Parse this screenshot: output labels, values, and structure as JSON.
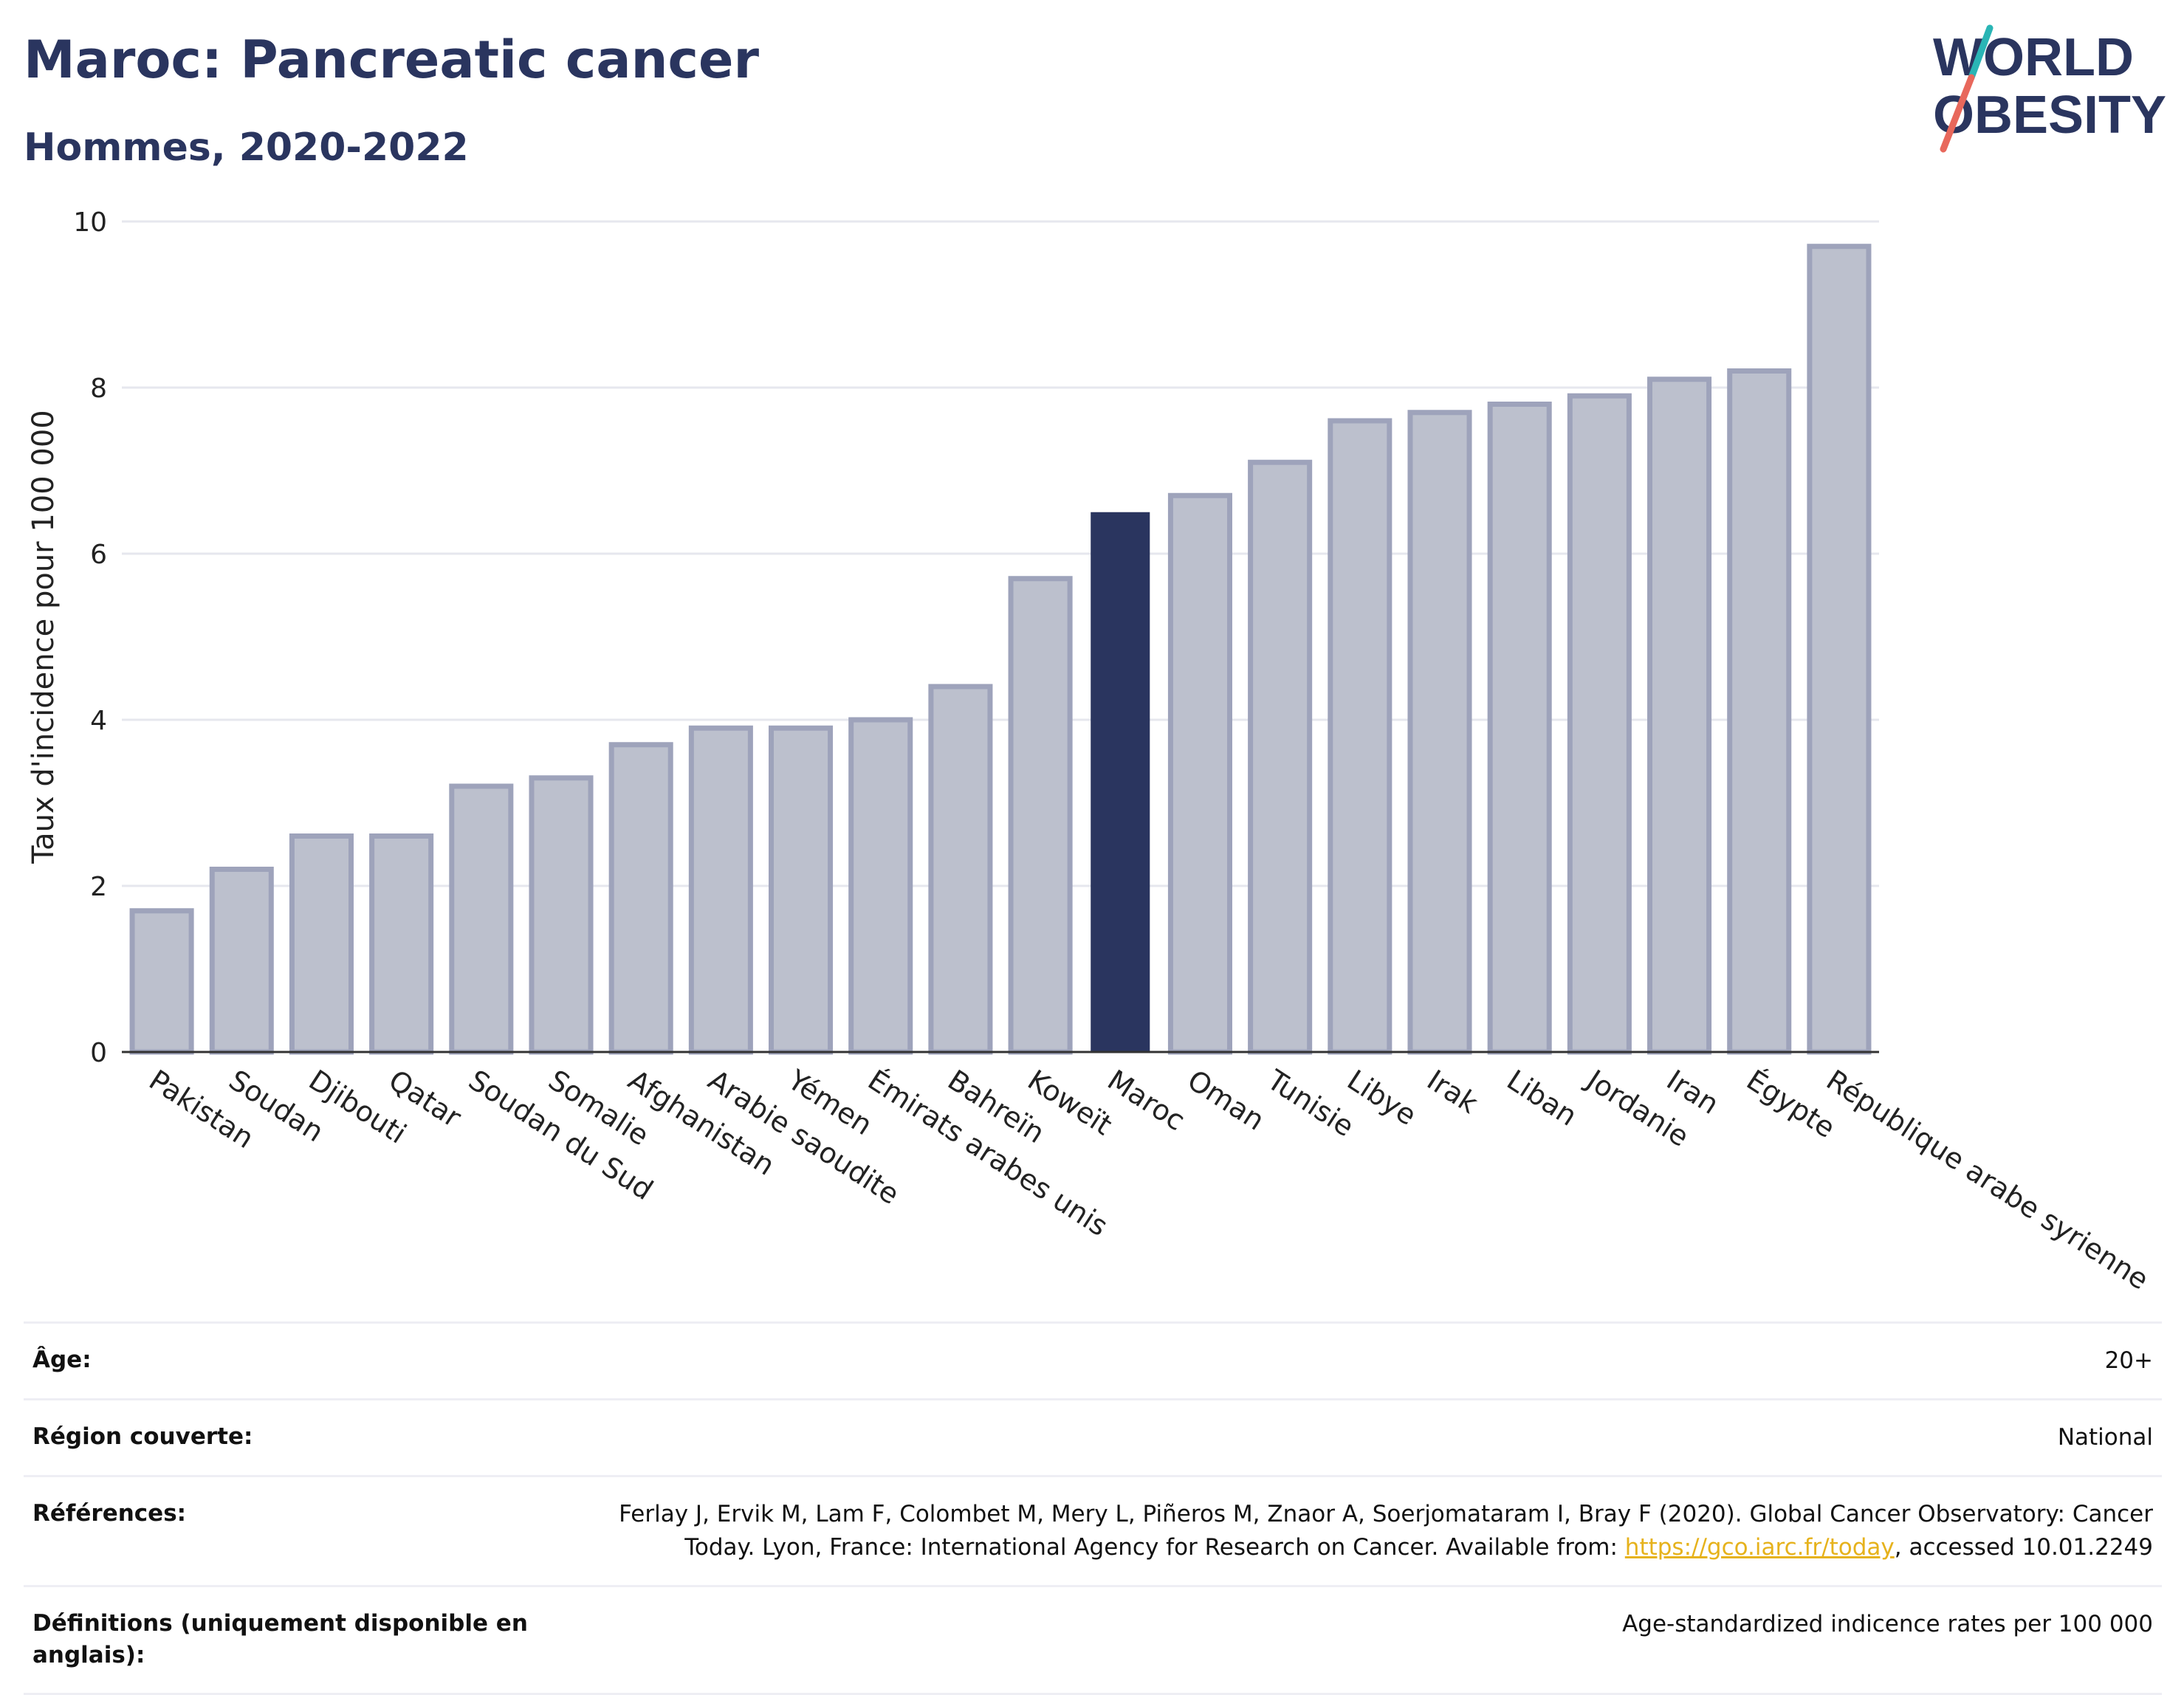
{
  "header": {
    "title": "Maroc: Pancreatic cancer",
    "subtitle": "Hommes, 2020-2022"
  },
  "logo": {
    "line1": "WORLD",
    "line2": "OBESITY"
  },
  "colors": {
    "highlight": "#2a355f",
    "bar_fill": "#bcc0cd",
    "bar_stroke": "#9ea3bb",
    "accent_teal": "#2ab5b5",
    "accent_red": "#e8685c",
    "link": "#e6b21c"
  },
  "chart_data": {
    "type": "bar",
    "title": "Maroc: Pancreatic cancer",
    "subtitle": "Hommes, 2020-2022",
    "ylabel": "Taux d'incidence pour 100 000",
    "xlabel": "",
    "ylim": [
      0,
      10
    ],
    "yticks": [
      0,
      2,
      4,
      6,
      8,
      10
    ],
    "grid": true,
    "highlight": "Maroc",
    "categories": [
      "Pakistan",
      "Soudan",
      "Djibouti",
      "Qatar",
      "Soudan du Sud",
      "Somalie",
      "Afghanistan",
      "Arabie saoudite",
      "Yémen",
      "Émirats arabes unis",
      "Bahreïn",
      "Koweït",
      "Maroc",
      "Oman",
      "Tunisie",
      "Libye",
      "Irak",
      "Liban",
      "Jordanie",
      "Iran",
      "Égypte",
      "République arabe syrienne"
    ],
    "values": [
      1.7,
      2.2,
      2.6,
      2.6,
      3.2,
      3.3,
      3.7,
      3.9,
      3.9,
      4.0,
      4.4,
      5.7,
      6.5,
      6.7,
      7.1,
      7.6,
      7.7,
      7.8,
      7.9,
      8.1,
      8.2,
      9.7
    ]
  },
  "info": [
    {
      "key": "Âge:",
      "value": "20+"
    },
    {
      "key": "Région couverte:",
      "value": "National"
    },
    {
      "key": "Références:",
      "value_before": "Ferlay J, Ervik M, Lam F, Colombet M, Mery L, Piñeros M, Znaor A, Soerjomataram I, Bray F (2020). Global Cancer Observatory: Cancer Today. Lyon, France: International Agency for Research on Cancer. Available from: ",
      "link": "https://gco.iarc.fr/today",
      "value_after": ", accessed 10.01.2249"
    },
    {
      "key": "Définitions (uniquement disponible en anglais):",
      "value": "Age-standardized indicence rates per 100 000"
    }
  ]
}
